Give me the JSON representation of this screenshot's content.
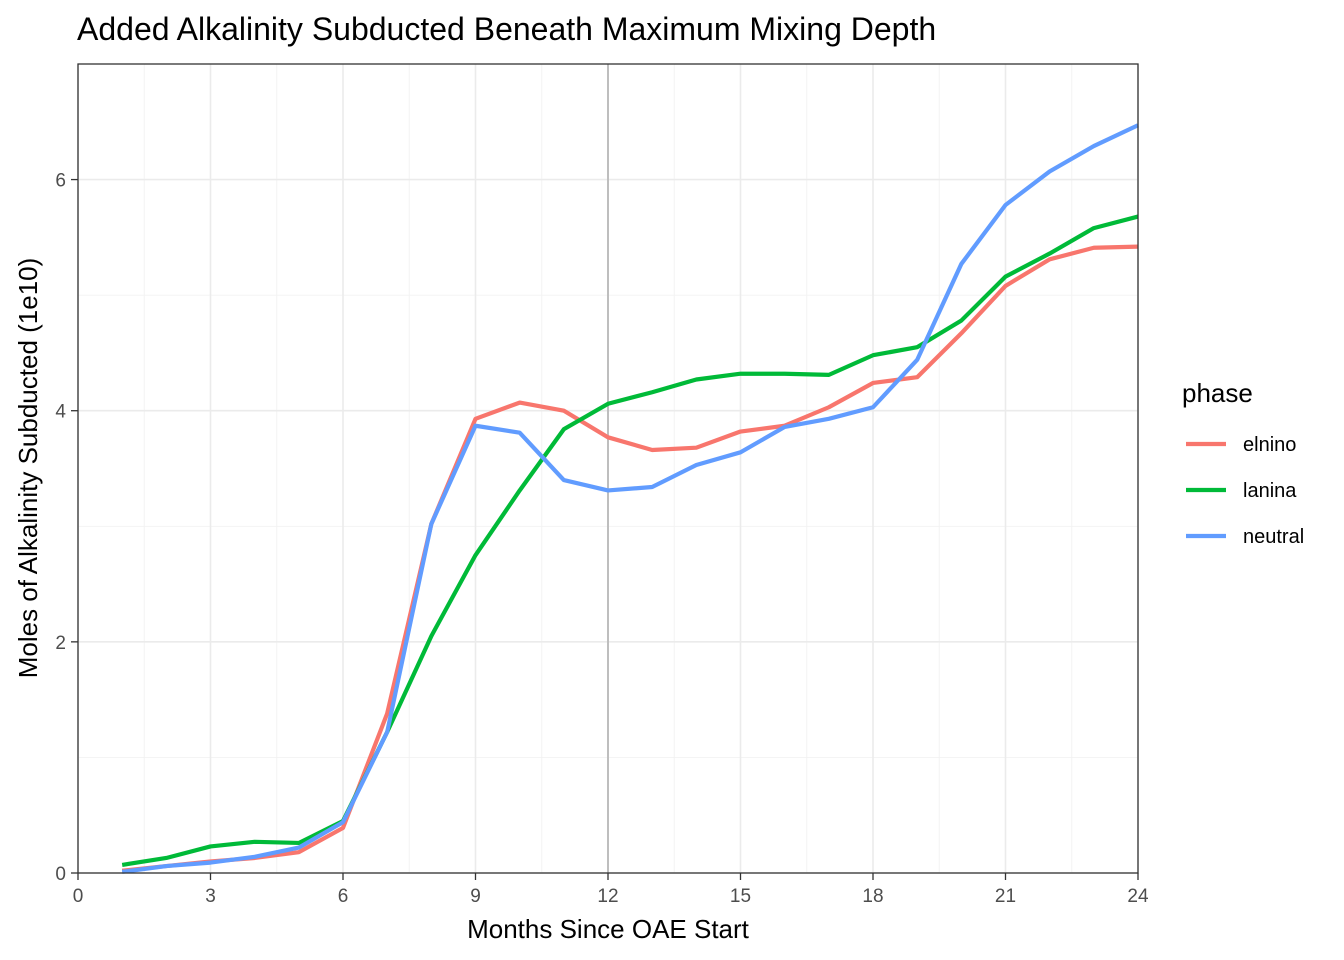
{
  "chart_data": {
    "type": "line",
    "title": "Added Alkalinity Subducted Beneath Maximum Mixing Depth",
    "xlabel": "Months Since OAE Start",
    "ylabel": "Moles of Alkalinity Subducted (1e10)",
    "xlim": [
      0,
      24
    ],
    "ylim": [
      0,
      7
    ],
    "x_ticks": [
      0,
      3,
      6,
      9,
      12,
      15,
      18,
      21,
      24
    ],
    "x_tick_labels": [
      "0",
      "3",
      "6",
      "9",
      "12",
      "15",
      "18",
      "21",
      "24"
    ],
    "y_ticks": [
      0,
      2,
      4,
      6
    ],
    "y_tick_labels": [
      "0",
      "2",
      "4",
      "6"
    ],
    "grid": true,
    "vline_x": 12,
    "legend": {
      "title": "phase",
      "position": "right"
    },
    "x": [
      1,
      2,
      3,
      4,
      5,
      6,
      7,
      8,
      9,
      10,
      11,
      12,
      13,
      14,
      15,
      16,
      17,
      18,
      19,
      20,
      21,
      22,
      23,
      24
    ],
    "series": [
      {
        "name": "elnino",
        "color": "#F8766D",
        "values": [
          0.02,
          0.06,
          0.1,
          0.13,
          0.18,
          0.39,
          1.38,
          3.02,
          3.93,
          4.07,
          4.0,
          3.77,
          3.66,
          3.68,
          3.82,
          3.87,
          4.03,
          4.24,
          4.29,
          4.67,
          5.08,
          5.31,
          5.41,
          5.42
        ]
      },
      {
        "name": "lanina",
        "color": "#00BA38",
        "values": [
          0.07,
          0.13,
          0.23,
          0.27,
          0.26,
          0.45,
          1.22,
          2.05,
          2.75,
          3.31,
          3.84,
          4.06,
          4.16,
          4.27,
          4.32,
          4.32,
          4.31,
          4.48,
          4.55,
          4.78,
          5.16,
          5.36,
          5.58,
          5.68
        ]
      },
      {
        "name": "neutral",
        "color": "#619CFF",
        "values": [
          0.01,
          0.06,
          0.09,
          0.14,
          0.22,
          0.44,
          1.22,
          3.02,
          3.87,
          3.81,
          3.4,
          3.31,
          3.34,
          3.53,
          3.64,
          3.86,
          3.93,
          4.03,
          4.44,
          5.27,
          5.78,
          6.07,
          6.29,
          6.47
        ]
      }
    ]
  }
}
